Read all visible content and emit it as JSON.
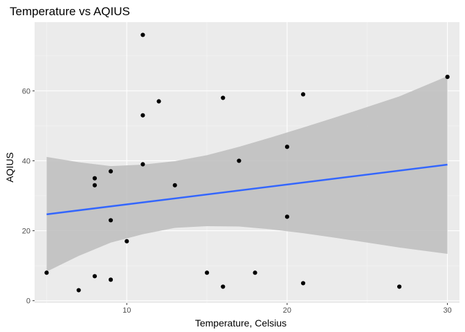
{
  "chart_data": {
    "type": "scatter",
    "title": "Temperature vs AQIUS",
    "xlabel": "Temperature, Celsius",
    "ylabel": "AQIUS",
    "xlim": [
      4.25,
      30.75
    ],
    "ylim": [
      -0.65,
      79.65
    ],
    "x_ticks": [
      10,
      20,
      30
    ],
    "x_minor_ticks": [
      5,
      15,
      25
    ],
    "y_ticks": [
      0,
      20,
      40,
      60
    ],
    "y_minor_ticks": [
      10,
      30,
      50,
      70
    ],
    "grid": true,
    "legend": "none",
    "points": [
      {
        "x": 5,
        "y": 8
      },
      {
        "x": 7,
        "y": 3
      },
      {
        "x": 8,
        "y": 7
      },
      {
        "x": 8,
        "y": 33
      },
      {
        "x": 8,
        "y": 35
      },
      {
        "x": 9,
        "y": 6
      },
      {
        "x": 9,
        "y": 23
      },
      {
        "x": 9,
        "y": 37
      },
      {
        "x": 10,
        "y": 17
      },
      {
        "x": 11,
        "y": 39
      },
      {
        "x": 11,
        "y": 53
      },
      {
        "x": 11,
        "y": 76
      },
      {
        "x": 12,
        "y": 57
      },
      {
        "x": 13,
        "y": 33
      },
      {
        "x": 15,
        "y": 8
      },
      {
        "x": 16,
        "y": 4
      },
      {
        "x": 16,
        "y": 58
      },
      {
        "x": 17,
        "y": 40
      },
      {
        "x": 18,
        "y": 8
      },
      {
        "x": 20,
        "y": 24
      },
      {
        "x": 20,
        "y": 44
      },
      {
        "x": 21,
        "y": 5
      },
      {
        "x": 21,
        "y": 59
      },
      {
        "x": 27,
        "y": 4
      },
      {
        "x": 30,
        "y": 64
      }
    ],
    "trend_line": {
      "method": "linear",
      "x": [
        5,
        30
      ],
      "y": [
        24.7,
        38.9
      ],
      "confidence_band": [
        {
          "x": 5,
          "lower": 8.3,
          "upper": 41.1
        },
        {
          "x": 7,
          "lower": 12.8,
          "upper": 39.6
        },
        {
          "x": 9,
          "lower": 16.6,
          "upper": 38.5
        },
        {
          "x": 11,
          "lower": 19.0,
          "upper": 38.9
        },
        {
          "x": 13,
          "lower": 20.8,
          "upper": 39.9
        },
        {
          "x": 15,
          "lower": 21.3,
          "upper": 41.6
        },
        {
          "x": 17,
          "lower": 21.2,
          "upper": 44.0
        },
        {
          "x": 19,
          "lower": 20.4,
          "upper": 46.7
        },
        {
          "x": 21,
          "lower": 19.3,
          "upper": 49.5
        },
        {
          "x": 23,
          "lower": 18.0,
          "upper": 52.4
        },
        {
          "x": 25,
          "lower": 16.6,
          "upper": 55.4
        },
        {
          "x": 27,
          "lower": 15.2,
          "upper": 58.4
        },
        {
          "x": 30,
          "lower": 13.4,
          "upper": 64.2
        }
      ]
    },
    "colors": {
      "panel": "#ebebeb",
      "grid_major": "#ffffff",
      "grid_minor": "#f5f5f5",
      "points": "#000000",
      "line": "#3366ff",
      "band": "#bdbdbd"
    }
  }
}
